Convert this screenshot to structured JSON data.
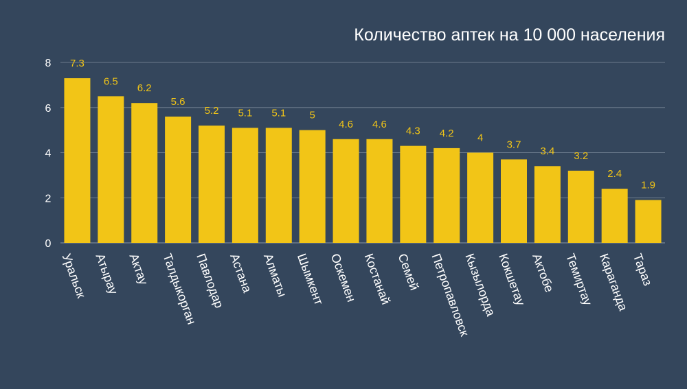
{
  "chart_data": {
    "type": "bar",
    "title": "Количество аптек на 10 000 населения",
    "xlabel": "",
    "ylabel": "",
    "categories": [
      "Уральск",
      "Атырау",
      "Актау",
      "Талдыкорган",
      "Павлодар",
      "Астана",
      "Алматы",
      "Шымкент",
      "Оскемен",
      "Костанай",
      "Семей",
      "Петропавловск",
      "Кызылорда",
      "Кокшетау",
      "Актобе",
      "Темиртау",
      "Караганда",
      "Тараз"
    ],
    "values": [
      7.3,
      6.5,
      6.2,
      5.6,
      5.2,
      5.1,
      5.1,
      5,
      4.6,
      4.6,
      4.3,
      4.2,
      4,
      3.7,
      3.4,
      3.2,
      2.4,
      1.9
    ],
    "ylim": [
      0,
      8
    ],
    "yticks": [
      0,
      2,
      4,
      6,
      8
    ],
    "grid": true,
    "legend": "none",
    "colors": {
      "background": "#34465c",
      "bar": "#f2c517",
      "value_label": "#f2c517",
      "text": "#ffffff",
      "grid": "#6b7a8c"
    }
  }
}
